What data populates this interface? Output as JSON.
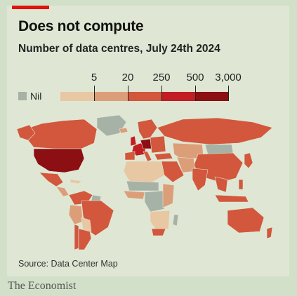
{
  "header": {
    "title": "Does not compute",
    "subtitle": "Number of data centres, July 24th 2024"
  },
  "legend": {
    "nil_label": "Nil",
    "ticks": [
      "5",
      "20",
      "250",
      "500",
      "3,000"
    ]
  },
  "colors": {
    "accent": "#e3120b",
    "nil": "#a7b2a6",
    "bins": [
      "#e8c7a3",
      "#dc9e79",
      "#d2573c",
      "#c11d22",
      "#8c0f14"
    ]
  },
  "footer": {
    "source": "Source: Data Center Map",
    "brand": "The Economist"
  }
}
